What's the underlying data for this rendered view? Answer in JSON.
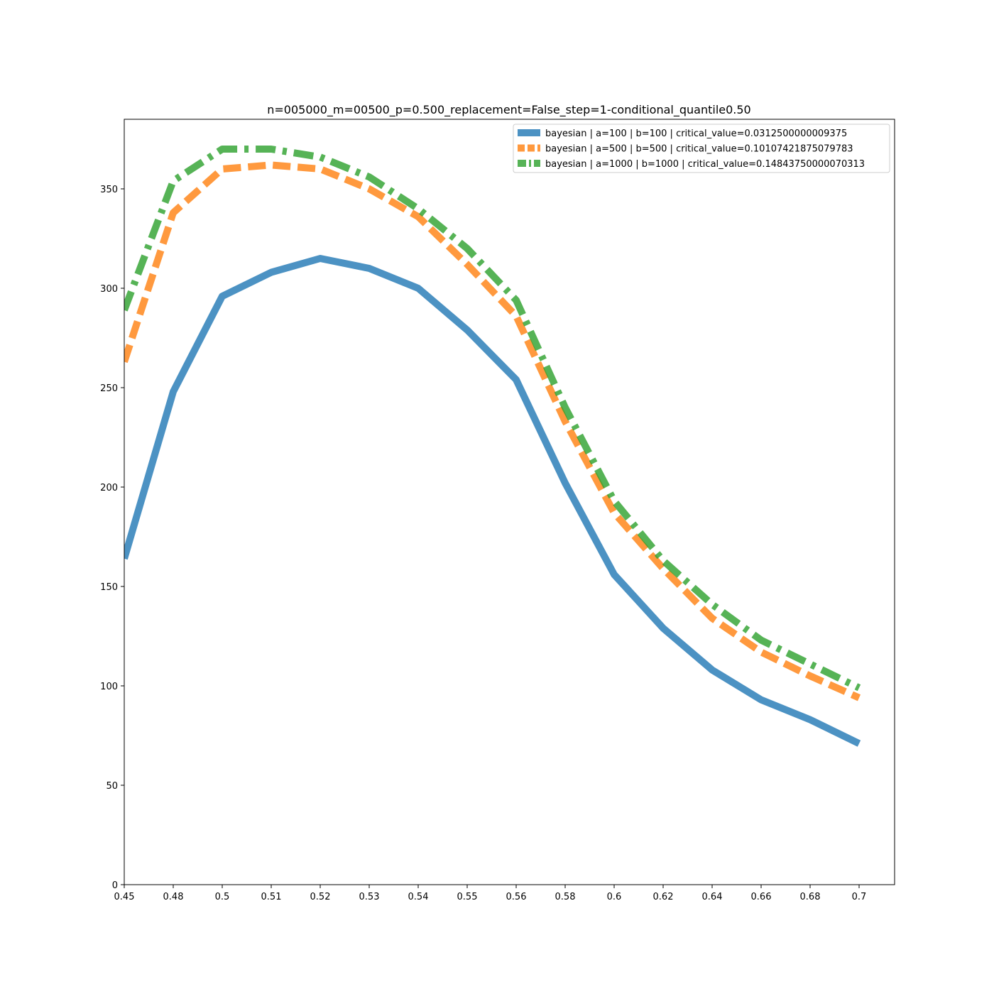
{
  "chart_data": {
    "type": "line",
    "title": "n=005000_m=00500_p=0.500_replacement=False_step=1-conditional_quantile0.50",
    "xlabel": "",
    "ylabel": "",
    "categories": [
      "0.45",
      "0.48",
      "0.5",
      "0.51",
      "0.52",
      "0.53",
      "0.54",
      "0.55",
      "0.56",
      "0.58",
      "0.6",
      "0.62",
      "0.64",
      "0.66",
      "0.68",
      "0.7"
    ],
    "ylim": [
      0,
      385
    ],
    "yticks": [
      "0",
      "50",
      "100",
      "150",
      "200",
      "250",
      "300",
      "350"
    ],
    "grid": false,
    "legend_position": "top-right",
    "series": [
      {
        "name": "bayesian | a=100 | b=100 | critical_value=0.0312500000009375",
        "color": "#1f77b4",
        "style": "solid",
        "values": [
          164,
          248,
          296,
          308,
          315,
          310,
          300,
          279,
          254,
          202,
          156,
          129,
          108,
          93,
          83,
          71
        ]
      },
      {
        "name": "bayesian | a=500 | b=500 | critical_value=0.10107421875079783",
        "color": "#ff7f0e",
        "style": "dashed",
        "values": [
          263,
          338,
          360,
          362,
          360,
          350,
          336,
          312,
          286,
          233,
          187,
          159,
          134,
          117,
          105,
          94
        ]
      },
      {
        "name": "bayesian | a=1000 | b=1000 | critical_value=0.14843750000070313",
        "color": "#2ca02c",
        "style": "dashdot",
        "values": [
          289,
          354,
          370,
          370,
          366,
          356,
          340,
          320,
          294,
          240,
          193,
          163,
          141,
          123,
          111,
          99
        ]
      }
    ]
  }
}
